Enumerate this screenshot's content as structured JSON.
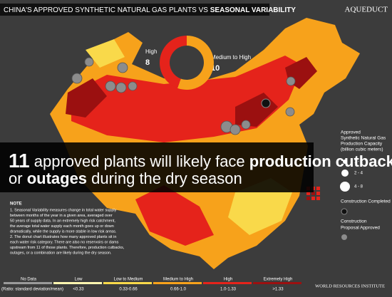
{
  "header": {
    "title_start": "CHINA'S APPROVED SYNTHETIC NATURAL GAS PLANTS VS",
    "title_bold": "SEASONAL VARIABILITY",
    "brand": "AQUEDUCT"
  },
  "donut": {
    "segments": [
      {
        "label": "High",
        "value": 8,
        "color": "#e5231b"
      },
      {
        "label": "Medium to High",
        "value": 10,
        "color": "#f7a21b"
      }
    ]
  },
  "headline": {
    "number": "11",
    "text1": "approved plants will likely face",
    "bold1": "production cutbacks",
    "text2": "or",
    "bold2": "outages",
    "text3": "during the dry season"
  },
  "legend": {
    "title": [
      "Approved",
      "Synthetic Natural Gas",
      "Production Capacity",
      "(billion cubic meters)"
    ],
    "sizes": [
      "1 - 2",
      "2 - 4",
      "4 - 8"
    ],
    "completed": "Construction Completed",
    "approved": [
      "Construction",
      "Proposal Approved"
    ]
  },
  "note": {
    "title": "NOTE",
    "lines": [
      "1. Seasonal Variability measures change in total water supply",
      "between months of the year in a given area, averaged over",
      "50 years of supply data. In an extremely high risk catchment,",
      "the average total water supply each month goes up or down",
      "dramatically, while the supply is more stable in low risk areas.",
      "2. The donut chart illustrates how many approved plants sit in",
      "each water risk category. There are also no reservoirs or dams",
      "upstream from 11 of those plants. Therefore, production cutbacks,",
      "outages, or a combination are likely during the dry season."
    ]
  },
  "scale": {
    "labels": [
      "No Data",
      "Low",
      "Low to Medium",
      "Medium to High",
      "High",
      "Extremely High"
    ],
    "colors": [
      "#9a9a9a",
      "#fff5b0",
      "#f9d94a",
      "#f7a21b",
      "#e5231b",
      "#9b1010"
    ],
    "ranges": [
      "<0.33",
      "0.33-0.66",
      "0.66-1.0",
      "1.0-1.33",
      ">1.33"
    ],
    "unit": "(Ratio: standard deviation/mean)"
  },
  "footer": {
    "org": "WORLD RESOURCES INSTITUTE"
  }
}
